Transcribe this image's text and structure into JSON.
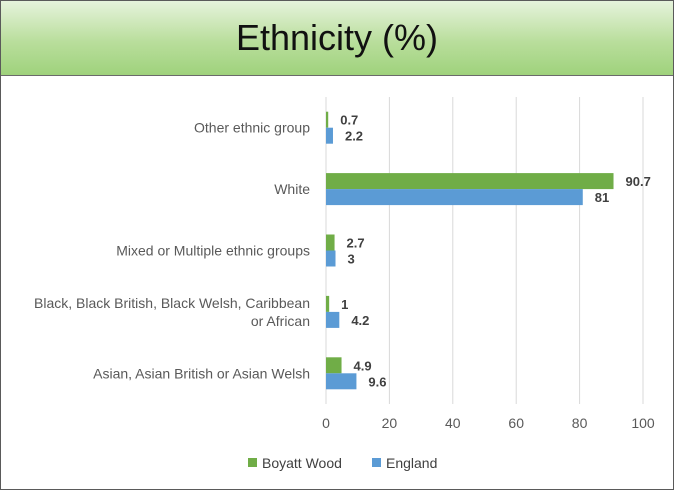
{
  "chart_data": {
    "type": "bar",
    "orientation": "horizontal",
    "title": "Ethnicity (%)",
    "categories": [
      "Other ethnic group",
      "White",
      "Mixed or Multiple ethnic groups",
      "Black, Black British, Black Welsh, Caribbean or African",
      "Asian, Asian British or Asian Welsh"
    ],
    "category_lines": [
      [
        "Other ethnic group"
      ],
      [
        "White"
      ],
      [
        "Mixed or Multiple ethnic groups"
      ],
      [
        "Black, Black British, Black Welsh, Caribbean",
        "or African"
      ],
      [
        "Asian, Asian British or Asian Welsh"
      ]
    ],
    "series": [
      {
        "name": "Boyatt Wood",
        "values": [
          0.7,
          90.7,
          2.7,
          1,
          4.9
        ],
        "labels": [
          "0.7",
          "90.7",
          "2.7",
          "1",
          "4.9"
        ],
        "color": "#70ad47"
      },
      {
        "name": "England",
        "values": [
          2.2,
          81,
          3,
          4.2,
          9.6
        ],
        "labels": [
          "2.2",
          "81",
          "3",
          "4.2",
          "9.6"
        ],
        "color": "#5b9bd5"
      }
    ],
    "xlim": [
      0,
      100
    ],
    "xticks": [
      "0",
      "20",
      "40",
      "60",
      "80",
      "100"
    ],
    "xtick_values": [
      0,
      20,
      40,
      60,
      80,
      100
    ],
    "grid": true,
    "legend": "bottom",
    "gridline_color": "#d9d9d9"
  }
}
